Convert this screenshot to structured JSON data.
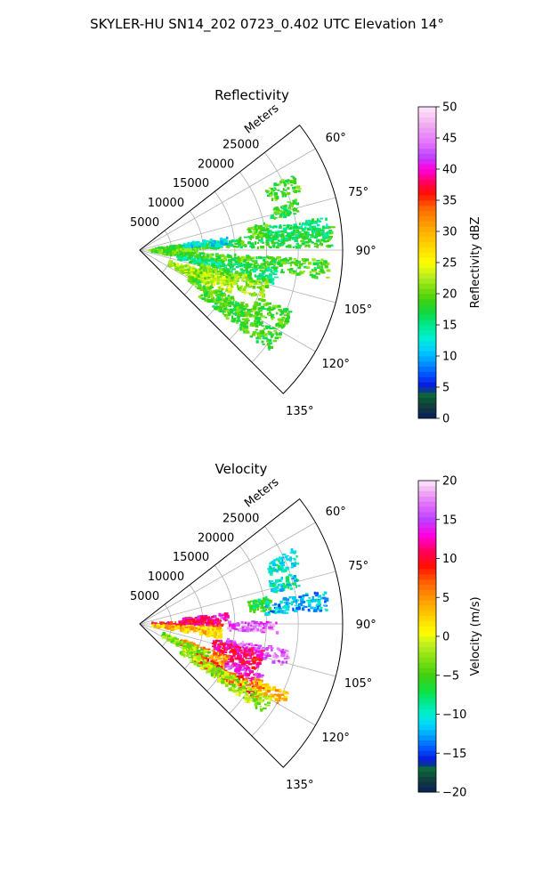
{
  "figure": {
    "suptitle": "SKYLER-HU  SN14_202  0723_0.402 UTC Elevation 14°"
  },
  "chart_data": [
    {
      "type": "heatmap",
      "projection": "polar-sector",
      "title": "Reflectivity",
      "radial_axis_label": "Meters",
      "radial_ticks": [
        5000,
        10000,
        15000,
        20000,
        25000
      ],
      "radial_tick_labels": [
        "5000",
        "10000",
        "15000",
        "20000",
        "25000"
      ],
      "rlim": [
        0,
        32000
      ],
      "theta_range_deg": [
        52,
        135
      ],
      "theta_ticks": [
        60,
        75,
        90,
        105,
        120,
        135
      ],
      "theta_tick_labels": [
        "60°",
        "75°",
        "90°",
        "105°",
        "120°",
        "135°"
      ],
      "grid": true,
      "colorbar": {
        "label": "Reflectivity dBZ",
        "range": [
          0,
          50
        ],
        "ticks": [
          0,
          5,
          10,
          15,
          20,
          25,
          30,
          35,
          40,
          45,
          50
        ],
        "tick_labels": [
          "0",
          "5",
          "10",
          "15",
          "20",
          "25",
          "30",
          "35",
          "40",
          "45",
          "50"
        ]
      },
      "echo_regions": [
        {
          "theta": [
            83,
            89
          ],
          "r": [
            2500,
            31000
          ],
          "value": 18
        },
        {
          "theta": [
            82,
            87
          ],
          "r": [
            7000,
            14000
          ],
          "value": 12
        },
        {
          "theta": [
            89,
            93
          ],
          "r": [
            1500,
            9000
          ],
          "value": 20
        },
        {
          "theta": [
            93,
            99
          ],
          "r": [
            2000,
            30000
          ],
          "value": 19
        },
        {
          "theta": [
            98,
            104
          ],
          "r": [
            6000,
            22000
          ],
          "value": 16
        },
        {
          "theta": [
            103,
            112
          ],
          "r": [
            10000,
            21000
          ],
          "value": 21
        },
        {
          "theta": [
            108,
            116
          ],
          "r": [
            7000,
            16000
          ],
          "value": 23
        },
        {
          "theta": [
            110,
            118
          ],
          "r": [
            5000,
            12000
          ],
          "value": 22
        },
        {
          "theta": [
            117,
            123
          ],
          "r": [
            9000,
            22000
          ],
          "value": 19
        },
        {
          "theta": [
            120,
            128
          ],
          "r": [
            12000,
            26000
          ],
          "value": 19
        },
        {
          "theta": [
            112,
            119
          ],
          "r": [
            20000,
            26000
          ],
          "value": 19
        },
        {
          "theta": [
            64,
            70
          ],
          "r": [
            22000,
            27000
          ],
          "value": 19
        },
        {
          "theta": [
            72,
            77
          ],
          "r": [
            21500,
            26000
          ],
          "value": 18
        },
        {
          "theta": [
            78,
            84
          ],
          "r": [
            17500,
            21000
          ],
          "value": 20
        },
        {
          "theta": [
            80,
            86
          ],
          "r": [
            20000,
            30000
          ],
          "value": 16
        }
      ]
    },
    {
      "type": "heatmap",
      "projection": "polar-sector",
      "title": "Velocity",
      "radial_axis_label": "Meters",
      "radial_ticks": [
        5000,
        10000,
        15000,
        20000,
        25000
      ],
      "radial_tick_labels": [
        "5000",
        "10000",
        "15000",
        "20000",
        "25000"
      ],
      "rlim": [
        0,
        32000
      ],
      "theta_range_deg": [
        52,
        135
      ],
      "theta_ticks": [
        60,
        75,
        90,
        105,
        120,
        135
      ],
      "theta_tick_labels": [
        "60°",
        "75°",
        "90°",
        "105°",
        "120°",
        "135°"
      ],
      "grid": true,
      "colorbar": {
        "label": "Velocity (m/s)",
        "range": [
          -20,
          20
        ],
        "ticks": [
          -20,
          -15,
          -10,
          -5,
          0,
          5,
          10,
          15,
          20
        ],
        "tick_labels": [
          "−20",
          "−15",
          "−10",
          "−5",
          "0",
          "5",
          "10",
          "15",
          "20"
        ]
      },
      "echo_regions": [
        {
          "theta": [
            83,
            88
          ],
          "r": [
            7000,
            14000
          ],
          "value": 12
        },
        {
          "theta": [
            87,
            92
          ],
          "r": [
            2000,
            13000
          ],
          "value": 10
        },
        {
          "theta": [
            89,
            94
          ],
          "r": [
            14000,
            22000
          ],
          "value": 16
        },
        {
          "theta": [
            92,
            100
          ],
          "r": [
            2000,
            13000
          ],
          "value": 3
        },
        {
          "theta": [
            100,
            106
          ],
          "r": [
            14000,
            24000
          ],
          "value": 16
        },
        {
          "theta": [
            102,
            112
          ],
          "r": [
            12000,
            20000
          ],
          "value": 11
        },
        {
          "theta": [
            110,
            117
          ],
          "r": [
            7000,
            15000
          ],
          "value": 5
        },
        {
          "theta": [
            112,
            117
          ],
          "r": [
            15000,
            21000
          ],
          "value": 14
        },
        {
          "theta": [
            112,
            120
          ],
          "r": [
            4000,
            12000
          ],
          "value": -3
        },
        {
          "theta": [
            117,
            124
          ],
          "r": [
            10000,
            22000
          ],
          "value": 7
        },
        {
          "theta": [
            119,
            126
          ],
          "r": [
            8000,
            24000
          ],
          "value": -2
        },
        {
          "theta": [
            115,
            120
          ],
          "r": [
            20000,
            26000
          ],
          "value": 4
        },
        {
          "theta": [
            64,
            70
          ],
          "r": [
            22000,
            27000
          ],
          "value": -10
        },
        {
          "theta": [
            72,
            77
          ],
          "r": [
            21500,
            26000
          ],
          "value": -10
        },
        {
          "theta": [
            78,
            84
          ],
          "r": [
            17500,
            21000
          ],
          "value": -6
        },
        {
          "theta": [
            80,
            86
          ],
          "r": [
            20000,
            30000
          ],
          "value": -12
        }
      ]
    }
  ]
}
